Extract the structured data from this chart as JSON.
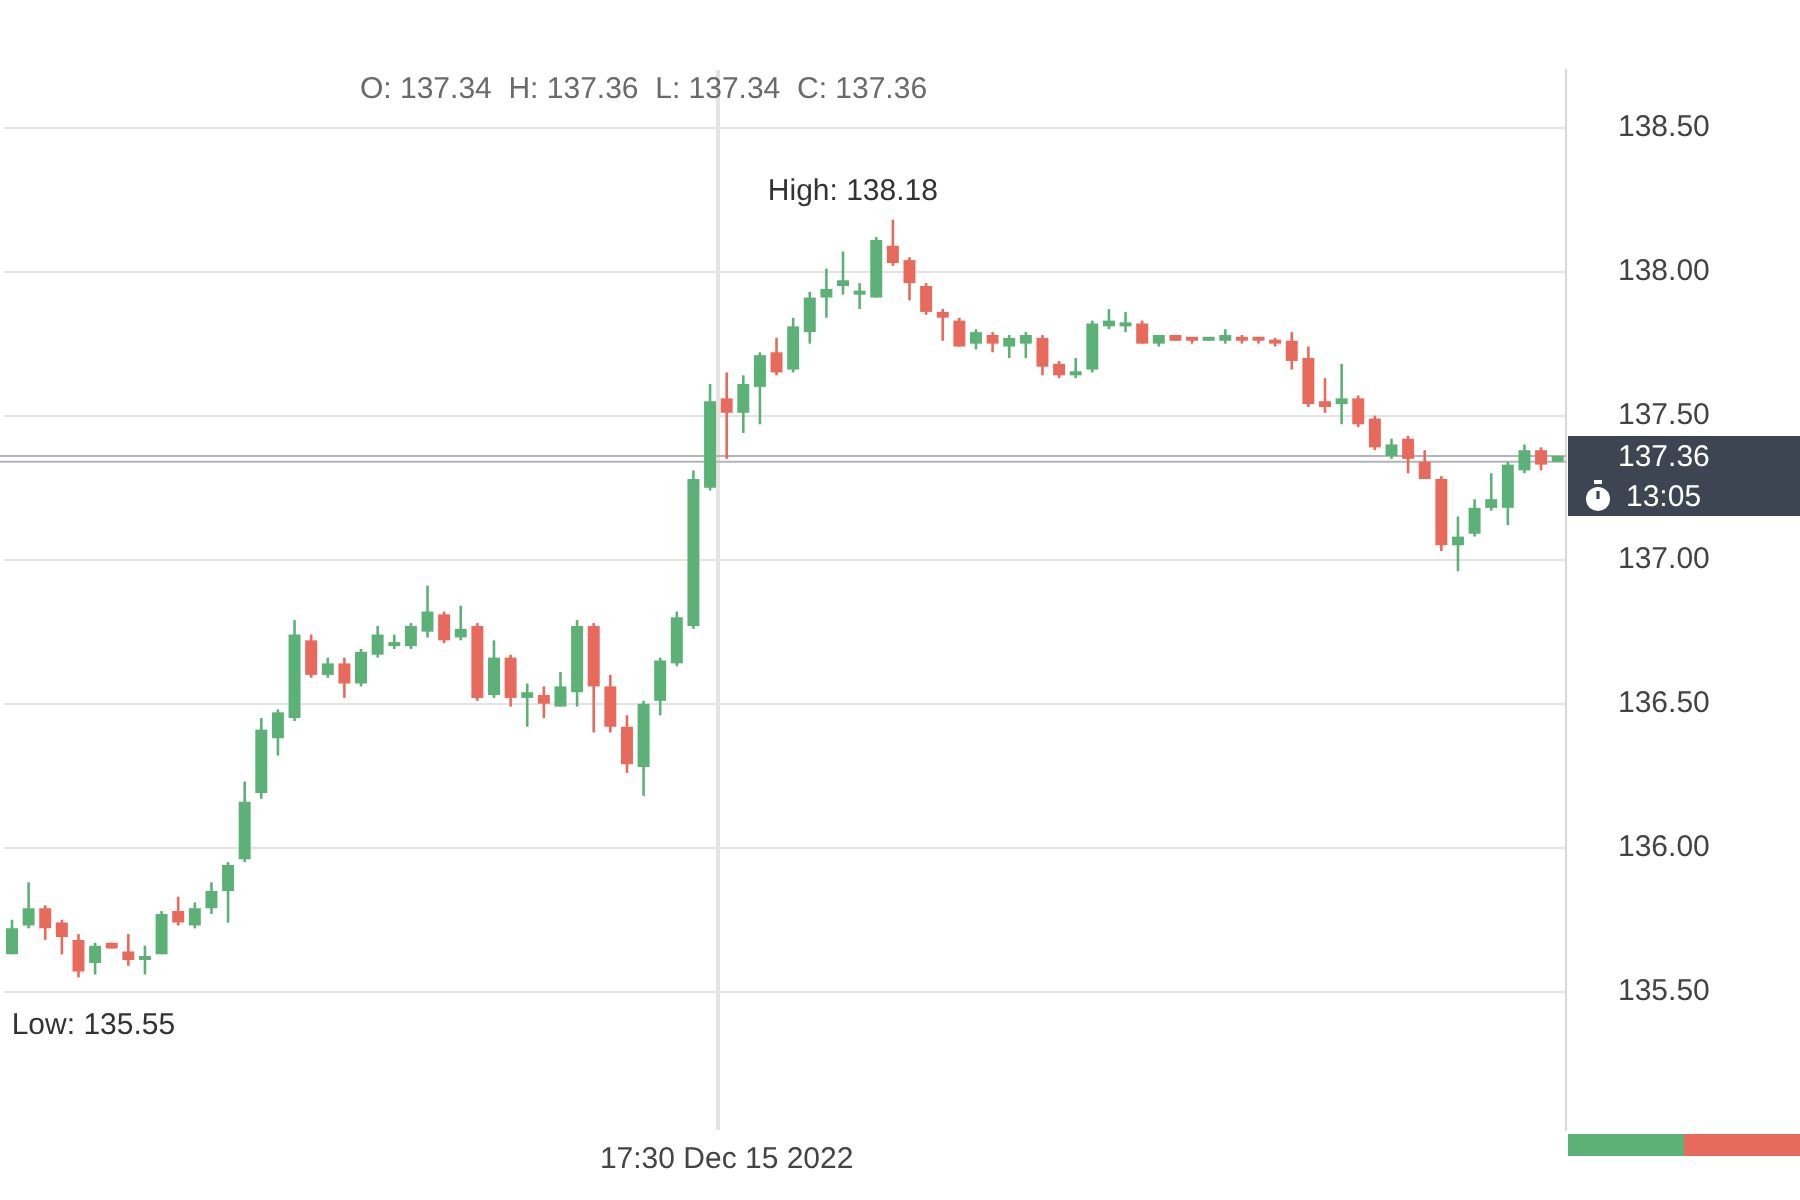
{
  "chart_data": {
    "type": "candlestick",
    "categories": [
      null,
      null,
      null,
      null,
      null,
      null,
      null,
      null,
      null,
      null,
      null,
      null,
      null,
      null,
      null,
      null,
      null,
      null,
      null,
      null,
      null,
      null,
      null,
      null,
      null,
      null,
      null,
      null,
      null,
      null,
      null,
      null,
      null,
      null,
      null,
      null,
      null,
      null,
      null,
      null,
      null,
      null,
      null,
      "17:30 Dec 15 2022",
      null,
      null,
      null,
      null,
      null,
      null,
      null,
      null,
      null,
      null,
      null,
      null,
      null,
      null,
      null,
      null,
      null,
      null,
      null,
      null,
      null,
      null,
      null,
      null,
      null,
      null,
      null,
      null,
      null,
      null,
      null,
      null,
      null,
      null,
      null,
      null,
      null,
      null,
      null,
      null,
      null,
      null,
      null,
      null,
      null,
      null,
      null,
      null,
      null,
      null
    ],
    "ohlc": [
      [
        135.63,
        135.75,
        135.63,
        135.72
      ],
      [
        135.73,
        135.88,
        135.72,
        135.79
      ],
      [
        135.79,
        135.8,
        135.68,
        135.72
      ],
      [
        135.74,
        135.75,
        135.63,
        135.69
      ],
      [
        135.68,
        135.7,
        135.55,
        135.57
      ],
      [
        135.6,
        135.67,
        135.56,
        135.66
      ],
      [
        135.67,
        135.67,
        135.65,
        135.65
      ],
      [
        135.64,
        135.7,
        135.59,
        135.61
      ],
      [
        135.61,
        135.66,
        135.56,
        135.62
      ],
      [
        135.63,
        135.78,
        135.63,
        135.77
      ],
      [
        135.78,
        135.83,
        135.73,
        135.74
      ],
      [
        135.73,
        135.81,
        135.72,
        135.79
      ],
      [
        135.79,
        135.88,
        135.77,
        135.85
      ],
      [
        135.85,
        135.95,
        135.74,
        135.94
      ],
      [
        135.96,
        136.23,
        135.95,
        136.16
      ],
      [
        136.19,
        136.45,
        136.17,
        136.41
      ],
      [
        136.38,
        136.48,
        136.32,
        136.47
      ],
      [
        136.45,
        136.79,
        136.44,
        136.74
      ],
      [
        136.72,
        136.74,
        136.59,
        136.6
      ],
      [
        136.6,
        136.66,
        136.59,
        136.64
      ],
      [
        136.64,
        136.66,
        136.52,
        136.57
      ],
      [
        136.57,
        136.69,
        136.56,
        136.68
      ],
      [
        136.67,
        136.77,
        136.66,
        136.74
      ],
      [
        136.7,
        136.74,
        136.69,
        136.71
      ],
      [
        136.7,
        136.78,
        136.69,
        136.77
      ],
      [
        136.75,
        136.91,
        136.73,
        136.82
      ],
      [
        136.81,
        136.82,
        136.71,
        136.72
      ],
      [
        136.73,
        136.84,
        136.72,
        136.76
      ],
      [
        136.77,
        136.78,
        136.51,
        136.52
      ],
      [
        136.53,
        136.72,
        136.52,
        136.66
      ],
      [
        136.66,
        136.67,
        136.49,
        136.52
      ],
      [
        136.52,
        136.57,
        136.42,
        136.54
      ],
      [
        136.53,
        136.56,
        136.45,
        136.5
      ],
      [
        136.49,
        136.61,
        136.49,
        136.56
      ],
      [
        136.54,
        136.79,
        136.49,
        136.77
      ],
      [
        136.77,
        136.78,
        136.4,
        136.56
      ],
      [
        136.56,
        136.6,
        136.4,
        136.42
      ],
      [
        136.42,
        136.46,
        136.26,
        136.29
      ],
      [
        136.28,
        136.51,
        136.18,
        136.5
      ],
      [
        136.51,
        136.66,
        136.46,
        136.65
      ],
      [
        136.64,
        136.82,
        136.63,
        136.8
      ],
      [
        136.77,
        137.31,
        136.76,
        137.28
      ],
      [
        137.25,
        137.61,
        137.24,
        137.55
      ],
      [
        137.56,
        137.65,
        137.35,
        137.51
      ],
      [
        137.51,
        137.64,
        137.44,
        137.61
      ],
      [
        137.6,
        137.72,
        137.47,
        137.71
      ],
      [
        137.72,
        137.77,
        137.64,
        137.65
      ],
      [
        137.66,
        137.84,
        137.65,
        137.81
      ],
      [
        137.79,
        137.93,
        137.75,
        137.91
      ],
      [
        137.91,
        138.01,
        137.84,
        137.94
      ],
      [
        137.95,
        138.07,
        137.92,
        137.97
      ],
      [
        137.92,
        137.96,
        137.87,
        137.93
      ],
      [
        137.91,
        138.12,
        137.91,
        138.11
      ],
      [
        138.09,
        138.18,
        138.02,
        138.03
      ],
      [
        138.04,
        138.05,
        137.9,
        137.96
      ],
      [
        137.95,
        137.96,
        137.85,
        137.86
      ],
      [
        137.86,
        137.87,
        137.76,
        137.84
      ],
      [
        137.83,
        137.84,
        137.74,
        137.74
      ],
      [
        137.75,
        137.8,
        137.73,
        137.79
      ],
      [
        137.78,
        137.79,
        137.72,
        137.75
      ],
      [
        137.74,
        137.78,
        137.7,
        137.77
      ],
      [
        137.75,
        137.79,
        137.7,
        137.78
      ],
      [
        137.77,
        137.78,
        137.64,
        137.67
      ],
      [
        137.68,
        137.69,
        137.63,
        137.64
      ],
      [
        137.64,
        137.7,
        137.63,
        137.65
      ],
      [
        137.66,
        137.83,
        137.65,
        137.82
      ],
      [
        137.81,
        137.87,
        137.8,
        137.83
      ],
      [
        137.81,
        137.86,
        137.79,
        137.82
      ],
      [
        137.82,
        137.83,
        137.75,
        137.75
      ],
      [
        137.75,
        137.78,
        137.74,
        137.78
      ],
      [
        137.78,
        137.78,
        137.76,
        137.76
      ],
      [
        137.77,
        137.77,
        137.75,
        137.76
      ],
      [
        137.76,
        137.77,
        137.76,
        137.77
      ],
      [
        137.76,
        137.8,
        137.75,
        137.78
      ],
      [
        137.77,
        137.78,
        137.75,
        137.76
      ],
      [
        137.77,
        137.77,
        137.75,
        137.76
      ],
      [
        137.76,
        137.77,
        137.74,
        137.75
      ],
      [
        137.76,
        137.79,
        137.66,
        137.69
      ],
      [
        137.7,
        137.74,
        137.53,
        137.54
      ],
      [
        137.55,
        137.63,
        137.51,
        137.53
      ],
      [
        137.54,
        137.68,
        137.47,
        137.56
      ],
      [
        137.56,
        137.57,
        137.46,
        137.47
      ],
      [
        137.49,
        137.5,
        137.38,
        137.39
      ],
      [
        137.36,
        137.42,
        137.35,
        137.4
      ],
      [
        137.42,
        137.43,
        137.3,
        137.35
      ],
      [
        137.34,
        137.38,
        137.28,
        137.28
      ],
      [
        137.28,
        137.29,
        137.03,
        137.05
      ],
      [
        137.05,
        137.15,
        136.96,
        137.08
      ],
      [
        137.09,
        137.21,
        137.08,
        137.18
      ],
      [
        137.18,
        137.3,
        137.17,
        137.21
      ],
      [
        137.18,
        137.34,
        137.12,
        137.33
      ],
      [
        137.31,
        137.4,
        137.3,
        137.38
      ],
      [
        137.38,
        137.39,
        137.31,
        137.33
      ],
      [
        137.34,
        137.36,
        137.34,
        137.36
      ]
    ],
    "colors": [
      "#5cb176",
      "#5cb176",
      "#e86a5c",
      "#e86a5c",
      "#e86a5c",
      "#5cb176",
      "#e86a5c",
      "#e86a5c",
      "#5cb176",
      "#5cb176",
      "#e86a5c",
      "#5cb176",
      "#5cb176",
      "#5cb176",
      "#5cb176",
      "#5cb176",
      "#5cb176",
      "#5cb176",
      "#e86a5c",
      "#5cb176",
      "#e86a5c",
      "#5cb176",
      "#5cb176",
      "#5cb176",
      "#5cb176",
      "#5cb176",
      "#e86a5c",
      "#5cb176",
      "#e86a5c",
      "#5cb176",
      "#e86a5c",
      "#5cb176",
      "#e86a5c",
      "#5cb176",
      "#5cb176",
      "#e86a5c",
      "#e86a5c",
      "#e86a5c",
      "#5cb176",
      "#5cb176",
      "#5cb176",
      "#5cb176",
      "#5cb176",
      "#e86a5c",
      "#5cb176",
      "#5cb176",
      "#e86a5c",
      "#5cb176",
      "#5cb176",
      "#5cb176",
      "#5cb176",
      "#5cb176",
      "#5cb176",
      "#e86a5c",
      "#e86a5c",
      "#e86a5c",
      "#e86a5c",
      "#e86a5c",
      "#5cb176",
      "#e86a5c",
      "#5cb176",
      "#5cb176",
      "#e86a5c",
      "#e86a5c",
      "#5cb176",
      "#5cb176",
      "#5cb176",
      "#5cb176",
      "#e86a5c",
      "#5cb176",
      "#e86a5c",
      "#e86a5c",
      "#5cb176",
      "#5cb176",
      "#e86a5c",
      "#e86a5c",
      "#e86a5c",
      "#e86a5c",
      "#e86a5c",
      "#e86a5c",
      "#5cb176",
      "#e86a5c",
      "#e86a5c",
      "#5cb176",
      "#e86a5c",
      "#e86a5c",
      "#e86a5c",
      "#5cb176",
      "#5cb176",
      "#5cb176",
      "#5cb176",
      "#5cb176",
      "#e86a5c",
      "#5cb176"
    ],
    "ylim": [
      135.02,
      138.7
    ],
    "yticks": [
      {
        "value": 135.5,
        "label": "135.50"
      },
      {
        "value": 136,
        "label": "136.00"
      },
      {
        "value": 136.5,
        "label": "136.50"
      },
      {
        "value": 137,
        "label": "137.00"
      },
      {
        "value": 137.5,
        "label": "137.50"
      },
      {
        "value": 138,
        "label": "138.00"
      },
      {
        "value": 138.5,
        "label": "138.50"
      }
    ],
    "grid": true,
    "ref_lines": [
      {
        "axis": "y",
        "value": 137.36,
        "label": "137.36",
        "color": "#b4b4bc"
      },
      {
        "axis": "y",
        "value": 137.34,
        "color": "#b4b4bc"
      }
    ],
    "annotations": [
      "O: 137.34  H: 137.36  L: 137.34  C: 137.36",
      "High: 138.18",
      "Low: 135.55",
      "13:05"
    ]
  }
}
